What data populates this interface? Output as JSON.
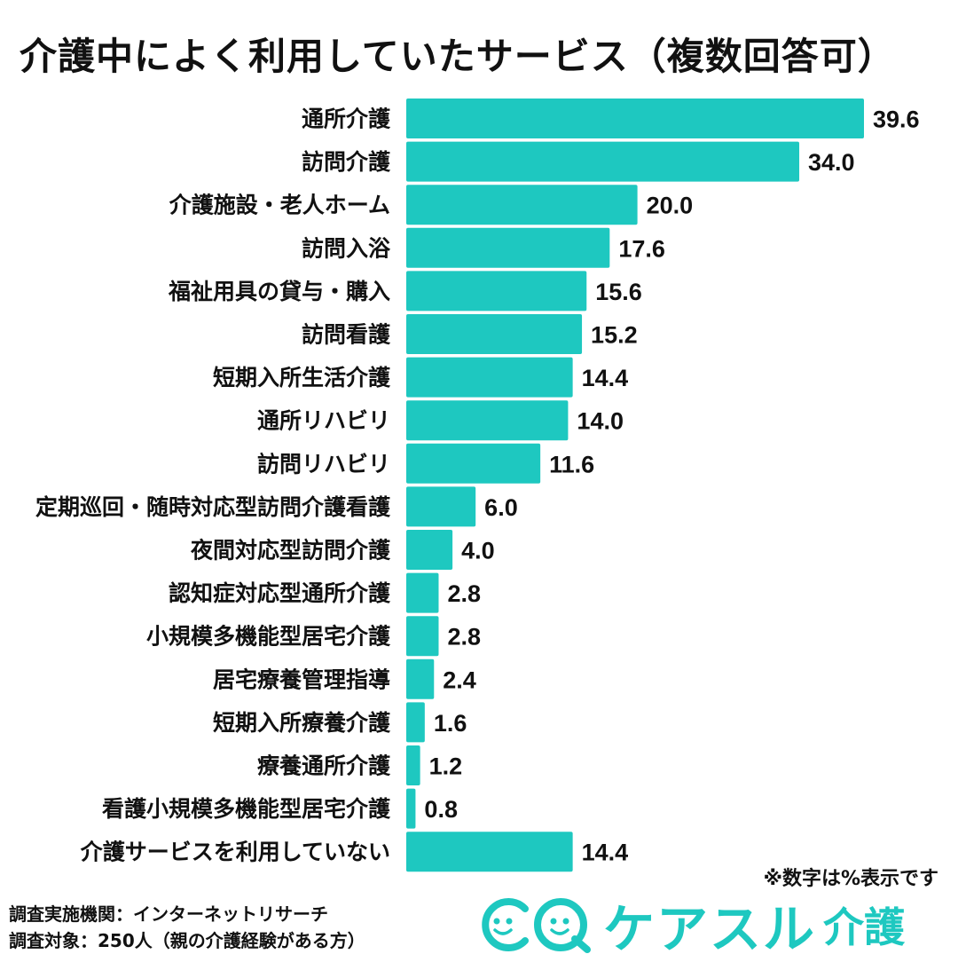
{
  "chart_data": {
    "type": "bar",
    "orientation": "horizontal",
    "title": "介護中によく利用していたサービス（複数回答可）",
    "unit": "%",
    "xlim": [
      0,
      39.6
    ],
    "categories": [
      "通所介護",
      "訪問介護",
      "介護施設・老人ホーム",
      "訪問入浴",
      "福祉用具の貸与・購入",
      "訪問看護",
      "短期入所生活介護",
      "通所リハビリ",
      "訪問リハビリ",
      "定期巡回・随時対応型訪問介護看護",
      "夜間対応型訪問介護",
      "認知症対応型通所介護",
      "小規模多機能型居宅介護",
      "居宅療養管理指導",
      "短期入所療養介護",
      "療養通所介護",
      "看護小規模多機能型居宅介護",
      "介護サービスを利用していない"
    ],
    "values": [
      39.6,
      34.0,
      20.0,
      17.6,
      15.6,
      15.2,
      14.4,
      14.0,
      11.6,
      6.0,
      4.0,
      2.8,
      2.8,
      2.4,
      1.6,
      1.2,
      0.8,
      14.4
    ],
    "value_labels": [
      "39.6",
      "34.0",
      "20.0",
      "17.6",
      "15.6",
      "15.2",
      "14.4",
      "14.0",
      "11.6",
      "6.0",
      "4.0",
      "2.8",
      "2.8",
      "2.4",
      "1.6",
      "1.2",
      "0.8",
      "14.4"
    ],
    "bar_color": "#1ec8c0"
  },
  "note": "※数字は%表示です",
  "survey": {
    "org": "調査実施機関：インターネットリサーチ",
    "target": "調査対象：250人（親の介護経験がある方）"
  },
  "logo": {
    "name": "ケアスル",
    "suffix": "介護",
    "color": "#1ec8c0"
  }
}
